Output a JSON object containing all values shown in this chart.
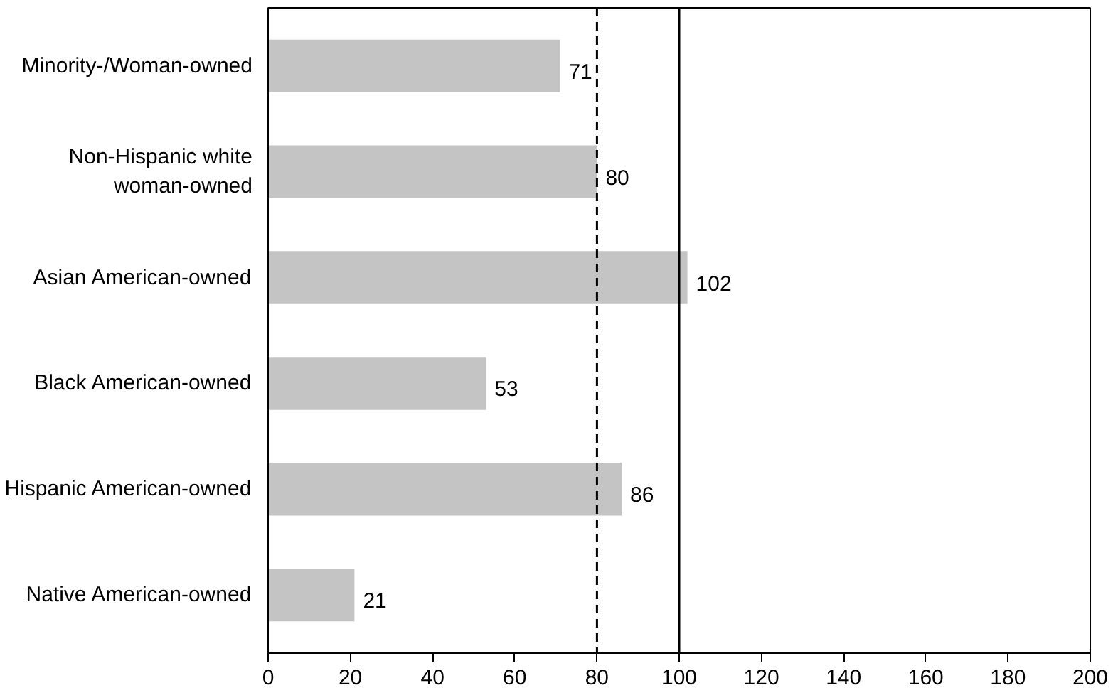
{
  "chart_data": {
    "type": "bar",
    "orientation": "horizontal",
    "categories": [
      "Minority-/Woman-owned",
      "Non-Hispanic white\nwoman-owned",
      "Asian American-owned",
      "Black American-owned",
      "Hispanic American-owned",
      "Native American-owned"
    ],
    "values": [
      71,
      80,
      102,
      53,
      86,
      21
    ],
    "color": "#c4c4c4",
    "data_labels": true,
    "xlim": [
      0,
      200
    ],
    "xticks": [
      0,
      20,
      40,
      60,
      80,
      100,
      120,
      140,
      160,
      180,
      200
    ],
    "grid": false,
    "ref_lines": [
      {
        "axis": "x",
        "value": 80,
        "line_style": "dashed",
        "color": "#000000"
      },
      {
        "axis": "x",
        "value": 100,
        "line_style": "solid",
        "color": "#000000"
      }
    ]
  }
}
